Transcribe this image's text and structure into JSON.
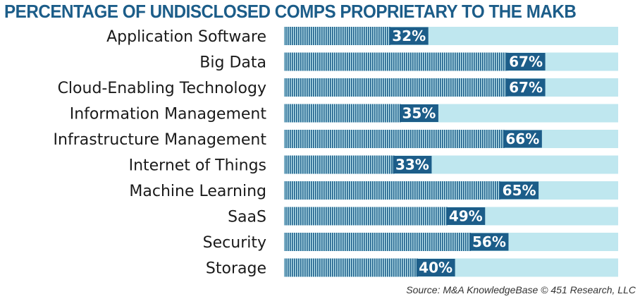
{
  "chart_data": {
    "type": "bar",
    "orientation": "horizontal",
    "title": "PERCENTAGE OF UNDISCLOSED COMPS PROPRIETARY TO THE MAKB",
    "categories": [
      "Application Software",
      "Big Data",
      "Cloud-Enabling Technology",
      "Information Management",
      "Infrastructure Management",
      "Internet of Things",
      "Machine Learning",
      "SaaS",
      "Security",
      "Storage"
    ],
    "values": [
      32,
      67,
      67,
      35,
      66,
      33,
      65,
      49,
      56,
      40
    ],
    "value_labels": [
      "32%",
      "67%",
      "67%",
      "35%",
      "66%",
      "33%",
      "65%",
      "49%",
      "56%",
      "40%"
    ],
    "xlim": [
      0,
      100
    ],
    "grid": false,
    "legend": "none",
    "colors": {
      "title": "#1c5d89",
      "track": "#bfe7ef",
      "bar": "#1c5d89",
      "label_box": "#1c5d89",
      "label_text": "#ffffff"
    }
  },
  "source": "Source: M&A KnowledgeBase © 451 Research, LLC"
}
